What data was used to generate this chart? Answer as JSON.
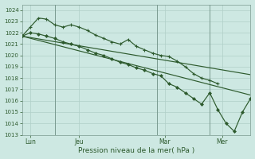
{
  "bg_color": "#cde8e2",
  "grid_color": "#b0cfc8",
  "line_color": "#2d5a2d",
  "xlabel": "Pression niveau de la mer( hPa )",
  "ylim": [
    1013,
    1024.5
  ],
  "yticks": [
    1013,
    1014,
    1015,
    1016,
    1017,
    1018,
    1019,
    1020,
    1021,
    1022,
    1023,
    1024
  ],
  "xlim": [
    0,
    28
  ],
  "day_labels": [
    "Lun",
    "Jeu",
    "Mar",
    "Mer"
  ],
  "day_positions": [
    1.0,
    7.0,
    17.5,
    24.5
  ],
  "vline_positions": [
    4.0,
    16.5,
    23.0
  ],
  "trend1_x": [
    0,
    28
  ],
  "trend1_y": [
    1021.7,
    1018.3
  ],
  "trend2_x": [
    0,
    28
  ],
  "trend2_y": [
    1021.7,
    1016.5
  ],
  "line_plus_x": [
    0,
    1,
    2,
    3,
    4,
    5,
    6,
    7,
    8,
    9,
    10,
    11,
    12,
    13,
    14,
    15,
    16,
    17,
    18,
    19,
    20,
    21,
    22,
    23,
    24
  ],
  "line_plus_y": [
    1021.7,
    1022.5,
    1023.3,
    1023.2,
    1022.7,
    1022.5,
    1022.7,
    1022.5,
    1022.2,
    1021.8,
    1021.5,
    1021.2,
    1021.0,
    1021.4,
    1020.8,
    1020.5,
    1020.2,
    1020.0,
    1019.9,
    1019.5,
    1019.0,
    1018.4,
    1018.0,
    1017.8,
    1017.5
  ],
  "line_diamond_x": [
    0,
    1,
    2,
    3,
    4,
    5,
    6,
    7,
    8,
    9,
    10,
    11,
    12,
    13,
    14,
    15,
    16,
    17,
    18,
    19,
    20,
    21,
    22,
    23,
    24,
    25,
    26,
    27,
    28
  ],
  "line_diamond_y": [
    1021.7,
    1022.0,
    1021.9,
    1021.7,
    1021.5,
    1021.2,
    1021.0,
    1020.8,
    1020.5,
    1020.2,
    1020.0,
    1019.7,
    1019.4,
    1019.2,
    1018.9,
    1018.7,
    1018.4,
    1018.2,
    1017.5,
    1017.2,
    1016.7,
    1016.2,
    1015.7,
    1016.7,
    1015.2,
    1014.0,
    1013.3,
    1015.0,
    1016.2
  ]
}
